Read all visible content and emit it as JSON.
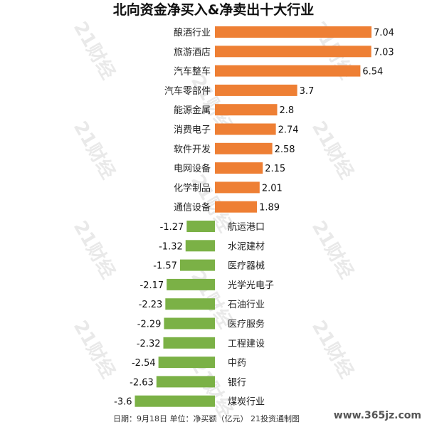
{
  "chart_data": {
    "type": "bar",
    "orientation": "horizontal",
    "title": "北向资金净买入&净卖出十大行业",
    "categories": [
      "酿酒行业",
      "旅游酒店",
      "汽车整车",
      "汽车零部件",
      "能源金属",
      "消费电子",
      "软件开发",
      "电网设备",
      "化学制品",
      "通信设备",
      "航运港口",
      "水泥建材",
      "医疗器械",
      "光学光电子",
      "石油行业",
      "医疗服务",
      "工程建设",
      "中药",
      "银行",
      "煤炭行业"
    ],
    "values": [
      7.04,
      7.03,
      6.54,
      3.7,
      2.8,
      2.74,
      2.58,
      2.15,
      2.01,
      1.89,
      -1.27,
      -1.32,
      -1.57,
      -2.17,
      -2.23,
      -2.29,
      -2.32,
      -2.54,
      -2.63,
      -3.6
    ],
    "value_labels": [
      "7.04",
      "7.03",
      "6.54",
      "3.7",
      "2.8",
      "2.74",
      "2.58",
      "2.15",
      "2.01",
      "1.89",
      "-1.27",
      "-1.32",
      "-1.57",
      "-2.17",
      "-2.23",
      "-2.29",
      "-2.32",
      "-2.54",
      "-2.63",
      "-3.6"
    ],
    "colors": {
      "positive": "#ee7f34",
      "negative": "#7bb146"
    },
    "xlim": [
      -3.6,
      7.04
    ],
    "grid": false,
    "legend": "none",
    "footnote": "日期：9月18日 单位：净买额（亿元） 21投资通制图"
  },
  "watermark": {
    "text": "21财经"
  },
  "site_mark": "www.365jz.com"
}
